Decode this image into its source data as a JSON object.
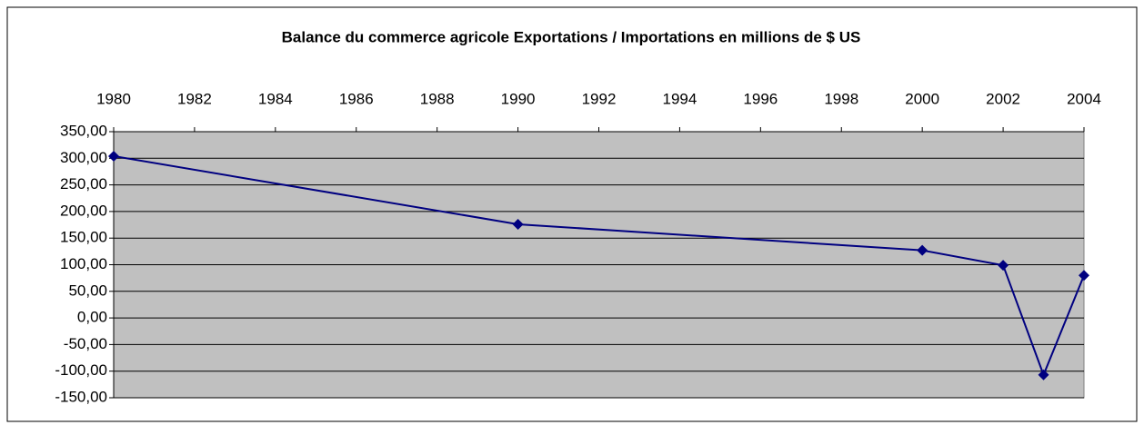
{
  "chart_data": {
    "type": "line",
    "title": "Balance du commerce agricole Exportations / Importations en millions de $ US",
    "x": [
      1980,
      1990,
      2000,
      2002,
      2003,
      2004
    ],
    "values": [
      304,
      176,
      127,
      99,
      -107,
      80
    ],
    "color": "#000080",
    "xlim": [
      1980,
      2004
    ],
    "xticks": [
      1980,
      1982,
      1984,
      1986,
      1988,
      1990,
      1992,
      1994,
      1996,
      1998,
      2000,
      2002,
      2004
    ],
    "ylim": [
      -150,
      350
    ],
    "yticks": [
      {
        "value": -150,
        "label": "-150,00"
      },
      {
        "value": -100,
        "label": "-100,00"
      },
      {
        "value": -50,
        "label": "-50,00"
      },
      {
        "value": 0,
        "label": "0,00"
      },
      {
        "value": 50,
        "label": "50,00"
      },
      {
        "value": 100,
        "label": "100,00"
      },
      {
        "value": 150,
        "label": "150,00"
      },
      {
        "value": 200,
        "label": "200,00"
      },
      {
        "value": 250,
        "label": "250,00"
      },
      {
        "value": 300,
        "label": "300,00"
      },
      {
        "value": 350,
        "label": "350,00"
      }
    ],
    "grid": true,
    "plot_background": "#c0c0c0"
  }
}
